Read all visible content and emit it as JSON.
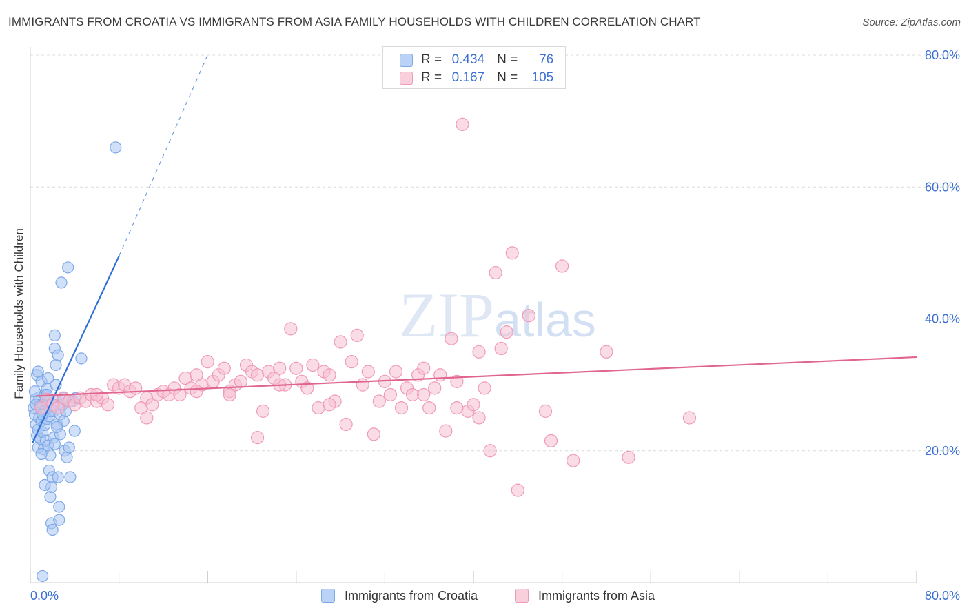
{
  "chart_data": {
    "type": "scatter",
    "title": "IMMIGRANTS FROM CROATIA VS IMMIGRANTS FROM ASIA FAMILY HOUSEHOLDS WITH CHILDREN CORRELATION CHART",
    "source": "Source: ZipAtlas.com",
    "xlabel": "",
    "ylabel": "Family Households with Children",
    "xlim": [
      0,
      80
    ],
    "ylim": [
      0,
      80
    ],
    "grid": true,
    "watermark": "ZIPatlas",
    "x_tick_labels": [
      "0.0%",
      "80.0%"
    ],
    "y_tick_labels": [
      "20.0%",
      "40.0%",
      "60.0%",
      "80.0%"
    ],
    "y_tick_values": [
      20,
      40,
      60,
      80
    ],
    "legend": {
      "position": "top-center",
      "entries": [
        {
          "r_label": "R =",
          "r_value": "0.434",
          "n_label": "N =",
          "n_value": "76"
        },
        {
          "r_label": "R =",
          "r_value": "0.167",
          "n_label": "N =",
          "n_value": "105"
        }
      ]
    },
    "series": [
      {
        "name": "Immigrants from Croatia",
        "color": "#7ea8e8",
        "fill": "#a9c6f2",
        "line_color": "#2f6fd6",
        "trend": {
          "x": [
            0.2,
            8
          ],
          "y": [
            21.2,
            49.5
          ],
          "dashed_to": [
            16,
            80
          ]
        },
        "points": [
          [
            0.3,
            26.5
          ],
          [
            0.4,
            25.5
          ],
          [
            0.5,
            27.8
          ],
          [
            0.5,
            24.0
          ],
          [
            0.6,
            22.3
          ],
          [
            0.6,
            31.5
          ],
          [
            0.7,
            23.2
          ],
          [
            0.7,
            20.5
          ],
          [
            0.8,
            28.1
          ],
          [
            0.8,
            25.0
          ],
          [
            0.9,
            26.9
          ],
          [
            0.9,
            21.8
          ],
          [
            1.0,
            30.5
          ],
          [
            1.0,
            24.5
          ],
          [
            1.1,
            27.0
          ],
          [
            1.1,
            22.8
          ],
          [
            1.2,
            25.9
          ],
          [
            1.2,
            20.2
          ],
          [
            1.3,
            28.5
          ],
          [
            1.3,
            23.9
          ],
          [
            1.4,
            26.2
          ],
          [
            1.4,
            21.5
          ],
          [
            1.5,
            29.4
          ],
          [
            1.5,
            24.8
          ],
          [
            1.6,
            27.4
          ],
          [
            1.6,
            20.8
          ],
          [
            1.7,
            25.2
          ],
          [
            1.7,
            17.0
          ],
          [
            1.8,
            19.3
          ],
          [
            1.8,
            13.0
          ],
          [
            1.9,
            14.5
          ],
          [
            1.9,
            9.0
          ],
          [
            2.0,
            8.0
          ],
          [
            2.0,
            16.0
          ],
          [
            2.1,
            26.0
          ],
          [
            2.1,
            22.0
          ],
          [
            2.2,
            35.5
          ],
          [
            2.2,
            37.5
          ],
          [
            2.3,
            30.0
          ],
          [
            2.3,
            33.0
          ],
          [
            2.4,
            27.5
          ],
          [
            2.4,
            24.0
          ],
          [
            2.5,
            34.5
          ],
          [
            2.5,
            16.0
          ],
          [
            2.6,
            9.5
          ],
          [
            2.6,
            11.5
          ],
          [
            2.7,
            25.5
          ],
          [
            2.7,
            22.5
          ],
          [
            2.8,
            45.5
          ],
          [
            2.9,
            27.0
          ],
          [
            3.0,
            28.0
          ],
          [
            3.0,
            24.5
          ],
          [
            3.1,
            20.0
          ],
          [
            3.2,
            26.0
          ],
          [
            3.3,
            19.0
          ],
          [
            3.4,
            47.8
          ],
          [
            3.5,
            20.5
          ],
          [
            3.6,
            16.0
          ],
          [
            3.8,
            27.5
          ],
          [
            4.0,
            23.0
          ],
          [
            4.1,
            28.0
          ],
          [
            4.6,
            34.0
          ],
          [
            0.4,
            29.0
          ],
          [
            0.7,
            32.0
          ],
          [
            1.0,
            19.5
          ],
          [
            1.3,
            14.8
          ],
          [
            1.5,
            28.5
          ],
          [
            1.8,
            26.0
          ],
          [
            2.2,
            21.0
          ],
          [
            0.5,
            27.0
          ],
          [
            1.1,
            25.5
          ],
          [
            1.6,
            31.0
          ],
          [
            2.0,
            27.0
          ],
          [
            7.7,
            66.0
          ],
          [
            1.1,
            1.0
          ],
          [
            2.4,
            23.6
          ]
        ]
      },
      {
        "name": "Immigrants from Asia",
        "color": "#f09ab8",
        "fill": "#f6bfd2",
        "line_color": "#e0668f",
        "trend": {
          "x": [
            0.5,
            80
          ],
          "y": [
            28.3,
            34.2
          ]
        },
        "points": [
          [
            1.5,
            27.8
          ],
          [
            2.0,
            27.0
          ],
          [
            2.5,
            26.5
          ],
          [
            3.0,
            28.0
          ],
          [
            3.5,
            27.5
          ],
          [
            4.0,
            27.0
          ],
          [
            4.5,
            28.0
          ],
          [
            5.0,
            27.5
          ],
          [
            5.5,
            28.5
          ],
          [
            6.0,
            27.5
          ],
          [
            6.5,
            28.0
          ],
          [
            7.0,
            27.0
          ],
          [
            7.5,
            30.0
          ],
          [
            8.0,
            29.5
          ],
          [
            8.5,
            30.0
          ],
          [
            9.0,
            29.0
          ],
          [
            9.5,
            29.5
          ],
          [
            10.0,
            26.5
          ],
          [
            10.5,
            28.0
          ],
          [
            11.0,
            27.0
          ],
          [
            11.5,
            28.5
          ],
          [
            12.0,
            29.0
          ],
          [
            12.5,
            28.5
          ],
          [
            13.0,
            29.5
          ],
          [
            13.5,
            28.5
          ],
          [
            14.0,
            31.0
          ],
          [
            14.5,
            29.5
          ],
          [
            15.0,
            31.5
          ],
          [
            15.5,
            30.0
          ],
          [
            16.0,
            33.5
          ],
          [
            16.5,
            30.5
          ],
          [
            17.0,
            31.5
          ],
          [
            17.5,
            32.5
          ],
          [
            18.0,
            29.0
          ],
          [
            18.5,
            30.0
          ],
          [
            19.0,
            30.5
          ],
          [
            19.5,
            33.0
          ],
          [
            20.0,
            32.0
          ],
          [
            20.5,
            31.5
          ],
          [
            21.0,
            26.0
          ],
          [
            21.5,
            32.0
          ],
          [
            22.0,
            31.0
          ],
          [
            22.5,
            32.5
          ],
          [
            23.0,
            30.0
          ],
          [
            23.5,
            38.5
          ],
          [
            24.0,
            32.5
          ],
          [
            24.5,
            30.5
          ],
          [
            25.0,
            29.5
          ],
          [
            25.5,
            33.0
          ],
          [
            26.0,
            26.5
          ],
          [
            26.5,
            32.0
          ],
          [
            27.0,
            31.5
          ],
          [
            27.5,
            27.5
          ],
          [
            28.0,
            36.5
          ],
          [
            28.5,
            24.0
          ],
          [
            29.0,
            33.5
          ],
          [
            29.5,
            37.5
          ],
          [
            30.0,
            30.0
          ],
          [
            30.5,
            32.0
          ],
          [
            31.0,
            22.5
          ],
          [
            31.5,
            27.5
          ],
          [
            32.0,
            30.5
          ],
          [
            32.5,
            28.5
          ],
          [
            33.0,
            32.0
          ],
          [
            33.5,
            26.5
          ],
          [
            34.0,
            29.5
          ],
          [
            34.5,
            28.5
          ],
          [
            35.0,
            31.5
          ],
          [
            35.5,
            32.5
          ],
          [
            36.0,
            26.5
          ],
          [
            36.5,
            29.5
          ],
          [
            37.0,
            31.5
          ],
          [
            37.5,
            23.0
          ],
          [
            38.0,
            37.0
          ],
          [
            38.5,
            30.5
          ],
          [
            39.0,
            69.5
          ],
          [
            39.5,
            26.0
          ],
          [
            40.0,
            27.0
          ],
          [
            40.5,
            35.0
          ],
          [
            41.0,
            29.5
          ],
          [
            41.5,
            20.0
          ],
          [
            42.0,
            47.0
          ],
          [
            42.5,
            35.5
          ],
          [
            43.0,
            38.0
          ],
          [
            43.5,
            50.0
          ],
          [
            44.0,
            14.0
          ],
          [
            45.0,
            40.5
          ],
          [
            46.5,
            26.0
          ],
          [
            47.0,
            21.5
          ],
          [
            48.0,
            48.0
          ],
          [
            49.0,
            18.5
          ],
          [
            52.0,
            35.0
          ],
          [
            54.0,
            19.0
          ],
          [
            59.5,
            25.0
          ],
          [
            6.0,
            28.5
          ],
          [
            10.5,
            25.0
          ],
          [
            18.0,
            28.5
          ],
          [
            20.5,
            22.0
          ],
          [
            27.0,
            27.0
          ],
          [
            35.5,
            28.5
          ],
          [
            38.5,
            26.5
          ],
          [
            40.5,
            25.0
          ],
          [
            15.0,
            29.0
          ],
          [
            22.5,
            30.0
          ],
          [
            1.0,
            26.5
          ]
        ]
      }
    ]
  },
  "legend_bottom": {
    "series1": "Immigrants from Croatia",
    "series2": "Immigrants from Asia"
  }
}
